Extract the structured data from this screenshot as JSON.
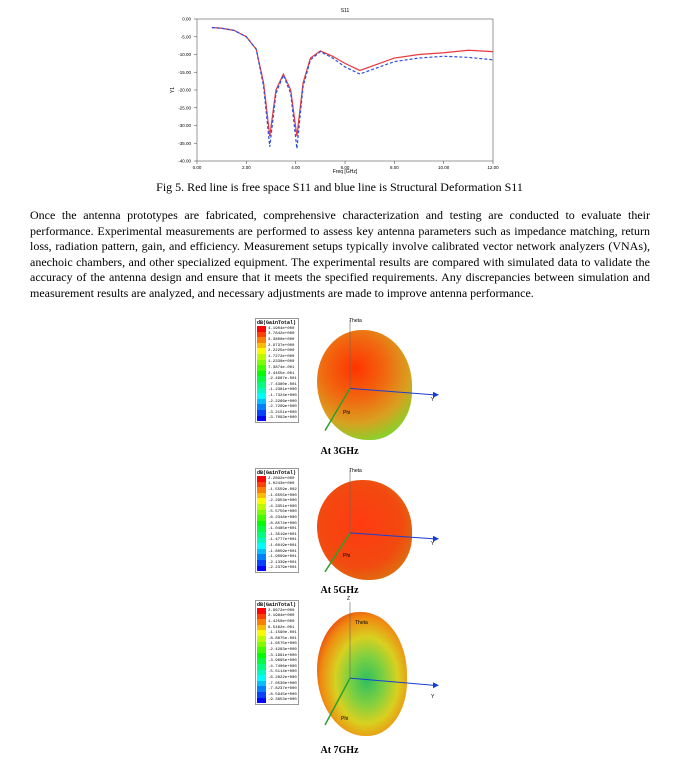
{
  "figure": {
    "chart": {
      "type": "line",
      "title": "S11",
      "xlabel": "Freq [GHz]",
      "ylabel": "Y1",
      "x": [
        0.6,
        1.0,
        1.5,
        2.0,
        2.4,
        2.7,
        2.95,
        3.2,
        3.5,
        3.8,
        4.05,
        4.3,
        4.6,
        5.0,
        5.5,
        6.0,
        6.6,
        7.2,
        8.0,
        9.0,
        10.0,
        11.0,
        12.0
      ],
      "series": [
        {
          "color": "#e8383d",
          "values": [
            -2.4,
            -2.6,
            -3.2,
            -5,
            -8.5,
            -18,
            -33,
            -20,
            -15.5,
            -20,
            -33,
            -18,
            -11,
            -9,
            -10.5,
            -12.5,
            -14.5,
            -13,
            -11,
            -10,
            -9.5,
            -8.8,
            -9.2
          ]
        },
        {
          "color": "#2d4ee0",
          "values": [
            -2.4,
            -2.6,
            -3.2,
            -5,
            -8.5,
            -19,
            -36,
            -21,
            -15.8,
            -21,
            -36.5,
            -19,
            -11.5,
            -9.2,
            -11,
            -13.5,
            -15.5,
            -14,
            -12,
            -11,
            -10.5,
            -10.8,
            -11.5
          ]
        }
      ],
      "xlim": [
        0,
        12
      ],
      "ylim": [
        -40,
        0
      ],
      "xticks": [
        {
          "value": 0,
          "label": "0.00"
        },
        {
          "value": 2,
          "label": "2.00"
        },
        {
          "value": 4,
          "label": "4.00"
        },
        {
          "value": 6,
          "label": "6.00"
        },
        {
          "value": 8,
          "label": "8.00"
        },
        {
          "value": 10,
          "label": "10.00"
        },
        {
          "value": 12,
          "label": "12.00"
        }
      ],
      "yticks": [
        {
          "value": 0,
          "label": "0.00"
        },
        {
          "value": -5,
          "label": "-5.00"
        },
        {
          "value": -10,
          "label": "-10.00"
        },
        {
          "value": -15,
          "label": "-15.00"
        },
        {
          "value": -20,
          "label": "-20.00"
        },
        {
          "value": -25,
          "label": "-25.00"
        },
        {
          "value": -30,
          "label": "-30.00"
        },
        {
          "value": -35,
          "label": "-35.00"
        },
        {
          "value": -40,
          "label": "-40.00"
        }
      ]
    },
    "caption": "Fig 5. Red line is free space S11 and blue line is Structural Deformation S11"
  },
  "paragraph": "Once the antenna prototypes are fabricated, comprehensive characterization and testing are conducted to evaluate their performance. Experimental measurements are performed to assess key antenna parameters such as impedance matching, return loss, radiation pattern, gain, and efficiency. Measurement setups typically involve calibrated vector network analyzers (VNAs), anechoic chambers, and other specialized equipment. The experimental results are compared with simulated data to validate the accuracy of the antenna design and ensure that it meets the specified requirements. Any discrepancies between simulation and measurement results are analyzed, and necessary adjustments are made to improve antenna performance.",
  "patterns": [
    {
      "legend_title": "dB(GainTotal)",
      "legend_values": [
        "4.1904e+000",
        "3.7842e+000",
        "3.3800e+000",
        "2.9737e+000",
        "2.2225e+000",
        "1.7272e+000",
        "1.2330e+000",
        "7.3874e-001",
        "2.4455e-001",
        "-2.4987e-001",
        "-7.4380e-001",
        "-1.2381e+000",
        "-1.7324e+000",
        "-2.2266e+000",
        "-2.7209e+000",
        "-3.2151e+000",
        "-3.7093e+000"
      ],
      "axis_labels": [
        "Theta",
        "Y",
        "Phi"
      ],
      "caption": "At 3GHz"
    },
    {
      "legend_title": "dB(GainTotal)",
      "legend_values": [
        "2.2892e+000",
        "1.0243e+000",
        "-1.5559e-002",
        "-1.6555e+000",
        "-2.2953e+000",
        "-4.3351e+000",
        "-5.5750e+000",
        "-6.2348e+000",
        "-8.8574e+000",
        "-1.0485e+001",
        "-1.3519e+001",
        "-1.4777e+001",
        "-1.6019e+001",
        "-1.8059e+001",
        "-1.9099e+001",
        "-2.1339e+001",
        "-2.2379e+001"
      ],
      "axis_labels": [
        "Theta",
        "Y",
        "Phi"
      ],
      "caption": "At 5GHz"
    },
    {
      "legend_title": "dB(GainTotal)",
      "legend_values": [
        "2.9672e+000",
        "2.1984e+000",
        "1.4250e+000",
        "6.5462e-001",
        "-1.1590e-001",
        "-8.8875e-001",
        "-1.6575e+000",
        "-2.4283e+000",
        "-3.1991e+000",
        "-3.9695e+000",
        "-4.7406e+000",
        "-5.5114e+000",
        "-6.2822e+000",
        "-7.0530e+000",
        "-7.8237e+000",
        "-8.5945e+000",
        "-9.3653e+000"
      ],
      "axis_labels": [
        "Z",
        "Theta",
        "Y",
        "Phi"
      ],
      "caption": "At 7GHz"
    }
  ]
}
